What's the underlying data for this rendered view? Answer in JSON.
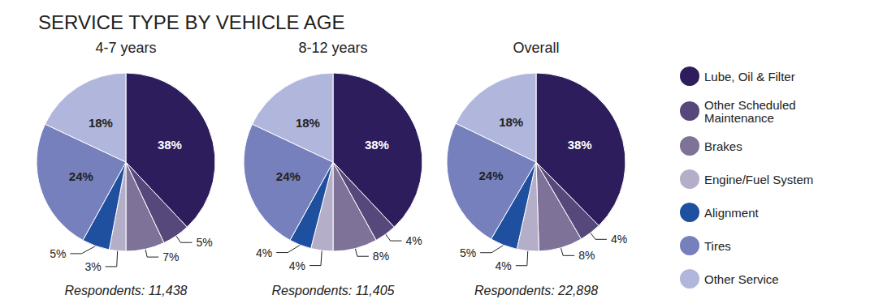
{
  "title": "SERVICE TYPE BY VEHICLE AGE",
  "legend": "right",
  "chart_data": [
    {
      "type": "pie",
      "title": "4-7 years",
      "annotation": "Respondents: 11,438",
      "categories": [
        "Lube, Oil & Filter",
        "Other Scheduled Maintenance",
        "Brakes",
        "Engine/Fuel System",
        "Alignment",
        "Tires",
        "Other Service"
      ],
      "values": [
        38,
        5,
        7,
        3,
        5,
        24,
        18
      ],
      "value_labels": [
        "38%",
        "5%",
        "7%",
        "3%",
        "5%",
        "24%",
        "18%"
      ],
      "colors": [
        "#2d1d5c",
        "#56487a",
        "#7e7299",
        "#b4aec8",
        "#1f4f9f",
        "#7680bd",
        "#b1b6dc"
      ],
      "data_labels": true
    },
    {
      "type": "pie",
      "title": "8-12 years",
      "annotation": "Respondents: 11,405",
      "categories": [
        "Lube, Oil & Filter",
        "Other Scheduled Maintenance",
        "Brakes",
        "Engine/Fuel System",
        "Alignment",
        "Tires",
        "Other Service"
      ],
      "values": [
        38,
        4,
        8,
        4,
        4,
        24,
        18
      ],
      "value_labels": [
        "38%",
        "4%",
        "8%",
        "4%",
        "4%",
        "24%",
        "18%"
      ],
      "colors": [
        "#2d1d5c",
        "#56487a",
        "#7e7299",
        "#b4aec8",
        "#1f4f9f",
        "#7680bd",
        "#b1b6dc"
      ],
      "data_labels": true
    },
    {
      "type": "pie",
      "title": "Overall",
      "annotation": "Respondents: 22,898",
      "categories": [
        "Lube, Oil & Filter",
        "Other Scheduled Maintenance",
        "Brakes",
        "Engine/Fuel System",
        "Alignment",
        "Tires",
        "Other Service"
      ],
      "values": [
        38,
        4,
        8,
        4,
        5,
        24,
        18
      ],
      "value_labels": [
        "38%",
        "4%",
        "8%",
        "4%",
        "5%",
        "24%",
        "18%"
      ],
      "colors": [
        "#2d1d5c",
        "#56487a",
        "#7e7299",
        "#b4aec8",
        "#1f4f9f",
        "#7680bd",
        "#b1b6dc"
      ],
      "data_labels": true
    }
  ]
}
